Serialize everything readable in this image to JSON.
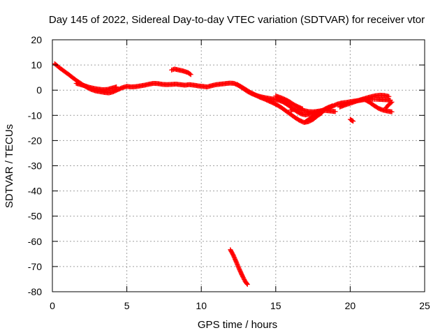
{
  "chart_data": {
    "type": "scatter",
    "title": "Day 145 of 2022, Sidereal Day-to-day VTEC variation (SDTVAR) for receiver vtor",
    "xlabel": "GPS time / hours",
    "ylabel": "SDTVAR / TECUs",
    "xlim": [
      0,
      25
    ],
    "ylim": [
      -80,
      20
    ],
    "xticks": [
      0,
      5,
      10,
      15,
      20,
      25
    ],
    "yticks": [
      20,
      10,
      0,
      -10,
      -20,
      -30,
      -40,
      -50,
      -60,
      -70,
      -80
    ],
    "grid": true,
    "marker": "plus",
    "colors": {
      "series": "#ff0000",
      "grid": "#a0a0a0",
      "axis": "#000000"
    },
    "series": [
      {
        "name": "SDTVAR",
        "segments": [
          [
            [
              0.15,
              10.5
            ],
            [
              0.3,
              9.8
            ],
            [
              0.5,
              8.8
            ],
            [
              0.8,
              7.5
            ],
            [
              1.1,
              6.2
            ],
            [
              1.4,
              4.8
            ],
            [
              1.7,
              3.5
            ],
            [
              2.0,
              2.3
            ],
            [
              2.3,
              1.2
            ],
            [
              2.6,
              0.3
            ],
            [
              2.9,
              -0.3
            ],
            [
              3.2,
              -0.6
            ],
            [
              3.5,
              -0.9
            ],
            [
              3.8,
              -1.1
            ],
            [
              4.1,
              -0.6
            ],
            [
              4.4,
              0.2
            ],
            [
              4.7,
              1.0
            ],
            [
              5.0,
              1.5
            ],
            [
              5.3,
              1.3
            ],
            [
              5.6,
              1.4
            ],
            [
              5.9,
              1.7
            ],
            [
              6.2,
              2.0
            ],
            [
              6.5,
              2.4
            ],
            [
              6.8,
              2.7
            ],
            [
              7.1,
              2.6
            ],
            [
              7.4,
              2.3
            ],
            [
              7.7,
              2.2
            ],
            [
              8.0,
              2.3
            ],
            [
              8.3,
              2.4
            ],
            [
              8.6,
              2.2
            ],
            [
              8.9,
              2.0
            ],
            [
              9.2,
              2.2
            ],
            [
              9.5,
              2.0
            ],
            [
              9.8,
              1.7
            ],
            [
              10.1,
              1.5
            ],
            [
              10.4,
              1.3
            ],
            [
              10.7,
              1.8
            ],
            [
              11.0,
              2.2
            ],
            [
              11.3,
              2.4
            ],
            [
              11.6,
              2.6
            ],
            [
              11.9,
              2.8
            ],
            [
              12.2,
              2.7
            ],
            [
              12.5,
              1.9
            ],
            [
              12.8,
              0.7
            ],
            [
              13.1,
              -0.5
            ],
            [
              13.4,
              -1.4
            ],
            [
              13.7,
              -2.1
            ],
            [
              14.0,
              -2.6
            ],
            [
              14.3,
              -3.0
            ],
            [
              14.6,
              -3.3
            ],
            [
              14.9,
              -3.6
            ],
            [
              15.2,
              -4.0
            ],
            [
              15.5,
              -4.7
            ],
            [
              15.8,
              -5.8
            ],
            [
              16.1,
              -7.1
            ],
            [
              16.4,
              -8.4
            ],
            [
              16.7,
              -9.4
            ],
            [
              17.0,
              -9.8
            ],
            [
              17.3,
              -9.5
            ],
            [
              17.6,
              -9.1
            ],
            [
              17.9,
              -8.6
            ],
            [
              18.2,
              -8.0
            ],
            [
              18.5,
              -7.2
            ],
            [
              18.8,
              -6.4
            ],
            [
              19.1,
              -5.6
            ],
            [
              19.4,
              -5.1
            ],
            [
              19.7,
              -4.9
            ],
            [
              20.0,
              -4.6
            ],
            [
              20.3,
              -4.3
            ],
            [
              20.6,
              -4.1
            ],
            [
              20.9,
              -3.8
            ],
            [
              21.2,
              -3.7
            ],
            [
              21.5,
              -3.6
            ],
            [
              21.8,
              -3.6
            ],
            [
              22.1,
              -3.7
            ],
            [
              22.4,
              -3.8
            ],
            [
              22.7,
              -4.0
            ]
          ],
          [
            [
              1.6,
              2.7
            ],
            [
              1.9,
              2.2
            ],
            [
              2.2,
              1.7
            ],
            [
              2.5,
              1.1
            ],
            [
              2.8,
              0.7
            ],
            [
              3.1,
              0.4
            ],
            [
              3.4,
              0.2
            ],
            [
              3.7,
              0.3
            ],
            [
              4.0,
              0.8
            ],
            [
              4.3,
              1.3
            ]
          ],
          [
            [
              12.4,
              2.3
            ],
            [
              12.7,
              1.3
            ],
            [
              13.0,
              0.2
            ],
            [
              13.3,
              -0.9
            ],
            [
              13.6,
              -1.8
            ],
            [
              13.9,
              -2.7
            ],
            [
              14.2,
              -3.4
            ],
            [
              14.5,
              -4.2
            ],
            [
              14.8,
              -5.0
            ],
            [
              15.1,
              -5.9
            ],
            [
              15.4,
              -7.0
            ],
            [
              15.7,
              -8.3
            ],
            [
              16.0,
              -9.6
            ],
            [
              16.3,
              -10.9
            ],
            [
              16.6,
              -12.0
            ],
            [
              16.9,
              -12.8
            ],
            [
              17.2,
              -12.5
            ],
            [
              17.5,
              -11.6
            ],
            [
              17.8,
              -10.2
            ],
            [
              18.1,
              -9.0
            ]
          ],
          [
            [
              17.0,
              -12.5
            ],
            [
              17.3,
              -11.3
            ],
            [
              17.6,
              -10.0
            ],
            [
              17.9,
              -8.8
            ],
            [
              18.2,
              -7.8
            ],
            [
              18.5,
              -6.9
            ],
            [
              18.8,
              -6.2
            ]
          ],
          [
            [
              15.0,
              -2.3
            ],
            [
              15.3,
              -2.9
            ],
            [
              15.6,
              -3.6
            ],
            [
              15.9,
              -4.5
            ],
            [
              16.2,
              -5.7
            ],
            [
              16.5,
              -6.6
            ],
            [
              16.8,
              -7.4
            ]
          ],
          [
            [
              16.0,
              -7.9
            ],
            [
              16.3,
              -7.6
            ],
            [
              16.6,
              -7.7
            ],
            [
              16.9,
              -8.1
            ],
            [
              17.2,
              -8.5
            ],
            [
              17.5,
              -8.6
            ],
            [
              17.8,
              -8.4
            ],
            [
              18.1,
              -8.1
            ],
            [
              18.4,
              -8.1
            ],
            [
              18.7,
              -8.3
            ],
            [
              19.0,
              -8.5
            ]
          ],
          [
            [
              19.3,
              -6.7
            ],
            [
              19.6,
              -6.0
            ],
            [
              19.9,
              -5.4
            ],
            [
              20.2,
              -4.8
            ],
            [
              20.5,
              -4.2
            ],
            [
              20.8,
              -3.6
            ],
            [
              21.1,
              -3.1
            ],
            [
              21.4,
              -2.6
            ],
            [
              21.7,
              -2.2
            ],
            [
              22.0,
              -2.0
            ],
            [
              22.3,
              -2.1
            ],
            [
              22.6,
              -2.5
            ]
          ],
          [
            [
              21.0,
              -3.8
            ],
            [
              21.3,
              -4.8
            ],
            [
              21.6,
              -6.1
            ],
            [
              21.9,
              -7.2
            ],
            [
              22.2,
              -7.9
            ],
            [
              22.5,
              -8.3
            ],
            [
              22.8,
              -8.6
            ]
          ],
          [
            [
              22.4,
              -7.0
            ],
            [
              22.6,
              -5.7
            ],
            [
              22.8,
              -4.7
            ]
          ],
          [
            [
              8.0,
              8.0
            ],
            [
              8.2,
              8.4
            ],
            [
              8.5,
              8.0
            ],
            [
              8.8,
              7.6
            ],
            [
              9.1,
              7.0
            ],
            [
              9.3,
              6.2
            ]
          ],
          [
            [
              20.0,
              -11.6
            ],
            [
              20.2,
              -12.3
            ]
          ],
          [
            [
              11.95,
              -63.3
            ],
            [
              12.15,
              -65.5
            ],
            [
              12.35,
              -68.2
            ],
            [
              12.55,
              -71.0
            ],
            [
              12.75,
              -73.6
            ],
            [
              12.95,
              -75.9
            ],
            [
              13.1,
              -77.1
            ]
          ]
        ]
      }
    ]
  }
}
